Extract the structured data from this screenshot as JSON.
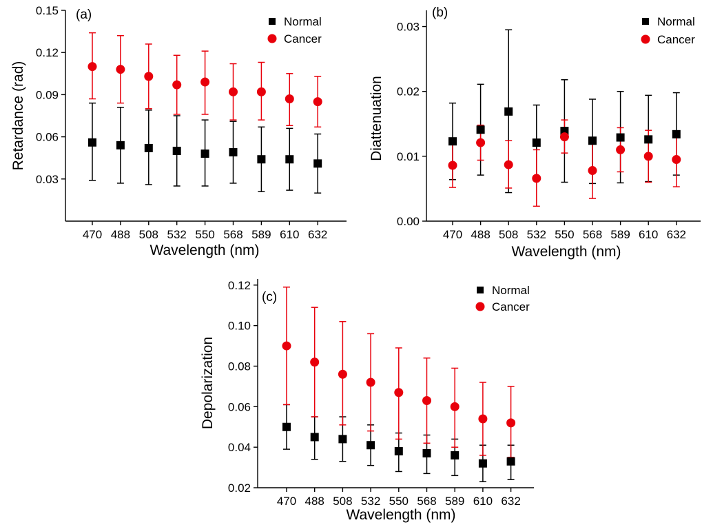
{
  "chart_data": [
    {
      "type": "scatter",
      "panel": "(a)",
      "categories": [
        "470",
        "488",
        "508",
        "532",
        "550",
        "568",
        "589",
        "610",
        "632"
      ],
      "xlabel": "Wavelength (nm)",
      "ylabel": "Retardance (rad)",
      "ylim": [
        0.0,
        0.15
      ],
      "yticks": [
        "0.03",
        "0.06",
        "0.09",
        "0.12",
        "0.15"
      ],
      "legend_position": "top-right",
      "series": [
        {
          "name": "Normal",
          "marker": "square",
          "color": "#000000",
          "values": [
            0.056,
            0.054,
            0.052,
            0.05,
            0.048,
            0.049,
            0.044,
            0.044,
            0.041
          ],
          "error_low": [
            0.029,
            0.027,
            0.026,
            0.025,
            0.025,
            0.027,
            0.021,
            0.022,
            0.02
          ],
          "error_high": [
            0.084,
            0.081,
            0.079,
            0.075,
            0.072,
            0.071,
            0.067,
            0.066,
            0.062
          ]
        },
        {
          "name": "Cancer",
          "marker": "circle",
          "color": "#e8000b",
          "values": [
            0.11,
            0.108,
            0.103,
            0.097,
            0.099,
            0.092,
            0.092,
            0.087,
            0.085
          ],
          "error_low": [
            0.087,
            0.084,
            0.08,
            0.076,
            0.076,
            0.072,
            0.072,
            0.068,
            0.067
          ],
          "error_high": [
            0.134,
            0.132,
            0.126,
            0.118,
            0.121,
            0.112,
            0.113,
            0.105,
            0.103
          ]
        }
      ]
    },
    {
      "type": "scatter",
      "panel": "(b)",
      "categories": [
        "470",
        "488",
        "508",
        "532",
        "550",
        "568",
        "589",
        "610",
        "632"
      ],
      "xlabel": "Wavelength (nm)",
      "ylabel": "Diattenuation",
      "ylim": [
        0.0,
        0.0325
      ],
      "yticks": [
        "0.00",
        "0.01",
        "0.02",
        "0.03"
      ],
      "legend_position": "top-right",
      "series": [
        {
          "name": "Normal",
          "marker": "square",
          "color": "#000000",
          "values": [
            0.0123,
            0.0141,
            0.0169,
            0.0121,
            0.0139,
            0.0124,
            0.0129,
            0.0126,
            0.0134
          ],
          "error_low": [
            0.0064,
            0.0071,
            0.0044,
            0.0068,
            0.006,
            0.0058,
            0.0059,
            0.0061,
            0.0071
          ],
          "error_high": [
            0.0182,
            0.0211,
            0.0295,
            0.0179,
            0.0218,
            0.0188,
            0.02,
            0.0194,
            0.0198
          ]
        },
        {
          "name": "Cancer",
          "marker": "circle",
          "color": "#e8000b",
          "values": [
            0.0086,
            0.0121,
            0.0087,
            0.0066,
            0.013,
            0.0078,
            0.011,
            0.01,
            0.0095
          ],
          "error_low": [
            0.0052,
            0.0094,
            0.0051,
            0.0023,
            0.0105,
            0.0035,
            0.0076,
            0.006,
            0.0053
          ],
          "error_high": [
            0.0121,
            0.0148,
            0.0124,
            0.011,
            0.0156,
            0.0122,
            0.0144,
            0.014,
            0.0136
          ]
        }
      ]
    },
    {
      "type": "scatter",
      "panel": "(c)",
      "categories": [
        "470",
        "488",
        "508",
        "532",
        "550",
        "568",
        "589",
        "610",
        "632"
      ],
      "xlabel": "Wavelength (nm)",
      "ylabel": "Depolarization",
      "ylim": [
        0.02,
        0.123
      ],
      "yticks": [
        "0.02",
        "0.04",
        "0.06",
        "0.08",
        "0.10",
        "0.12"
      ],
      "legend_position": "top-right",
      "series": [
        {
          "name": "Normal",
          "marker": "square",
          "color": "#000000",
          "values": [
            0.05,
            0.045,
            0.044,
            0.041,
            0.038,
            0.037,
            0.036,
            0.032,
            0.033
          ],
          "error_low": [
            0.039,
            0.034,
            0.033,
            0.031,
            0.028,
            0.027,
            0.026,
            0.023,
            0.024
          ],
          "error_high": [
            0.061,
            0.055,
            0.055,
            0.051,
            0.047,
            0.046,
            0.044,
            0.041,
            0.041
          ]
        },
        {
          "name": "Cancer",
          "marker": "circle",
          "color": "#e8000b",
          "values": [
            0.09,
            0.082,
            0.076,
            0.072,
            0.067,
            0.063,
            0.06,
            0.054,
            0.052
          ],
          "error_low": [
            0.061,
            0.055,
            0.051,
            0.048,
            0.044,
            0.042,
            0.04,
            0.036,
            0.035
          ],
          "error_high": [
            0.119,
            0.109,
            0.102,
            0.096,
            0.089,
            0.084,
            0.079,
            0.072,
            0.07
          ]
        }
      ]
    }
  ]
}
